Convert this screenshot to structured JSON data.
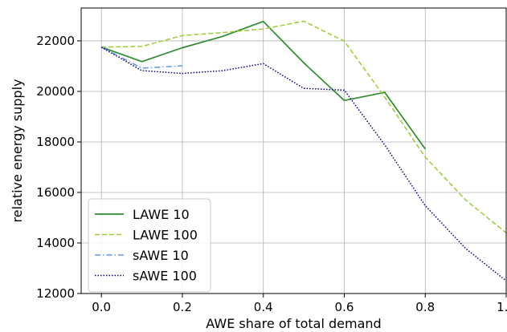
{
  "chart_data": {
    "type": "line",
    "xlabel": "AWE share of total demand",
    "ylabel": "relative energy supply",
    "xlim": [
      -0.05,
      1.0
    ],
    "ylim": [
      12000,
      23300
    ],
    "xticks": [
      0.0,
      0.2,
      0.4,
      0.6,
      0.8,
      1.0
    ],
    "xtick_labels": [
      "0.0",
      "0.2",
      "0.4",
      "0.6",
      "0.8",
      "1.0"
    ],
    "yticks": [
      12000,
      14000,
      16000,
      18000,
      20000,
      22000
    ],
    "ytick_labels": [
      "12000",
      "14000",
      "16000",
      "18000",
      "20000",
      "22000"
    ],
    "grid": true,
    "legend_position": "lower-left",
    "series": [
      {
        "name": "LAWE 10",
        "color": "#2e8b2e",
        "style": "solid",
        "x": [
          0.0,
          0.1,
          0.2,
          0.3,
          0.4,
          0.5,
          0.6,
          0.7,
          0.8
        ],
        "y": [
          21750,
          21180,
          21730,
          22180,
          22770,
          21130,
          19640,
          19960,
          17720
        ]
      },
      {
        "name": "LAWE 100",
        "color": "#9acd32",
        "style": "dashed",
        "x": [
          0.0,
          0.1,
          0.2,
          0.3,
          0.4,
          0.5,
          0.6,
          0.7,
          0.8,
          0.9,
          1.0
        ],
        "y": [
          21750,
          21780,
          22210,
          22330,
          22470,
          22780,
          21990,
          19770,
          17400,
          15700,
          14400
        ]
      },
      {
        "name": "sAWE 10",
        "color": "#6495ed",
        "style": "dashdot",
        "x": [
          0.0,
          0.1,
          0.2
        ],
        "y": [
          21750,
          20920,
          21010
        ]
      },
      {
        "name": "sAWE 100",
        "color": "#000080",
        "style": "dotted",
        "x": [
          0.0,
          0.1,
          0.2,
          0.3,
          0.4,
          0.5,
          0.6,
          0.7,
          0.8,
          0.9,
          1.0
        ],
        "y": [
          21750,
          20820,
          20710,
          20820,
          21100,
          20120,
          20050,
          17880,
          15480,
          13780,
          12500
        ]
      }
    ]
  }
}
